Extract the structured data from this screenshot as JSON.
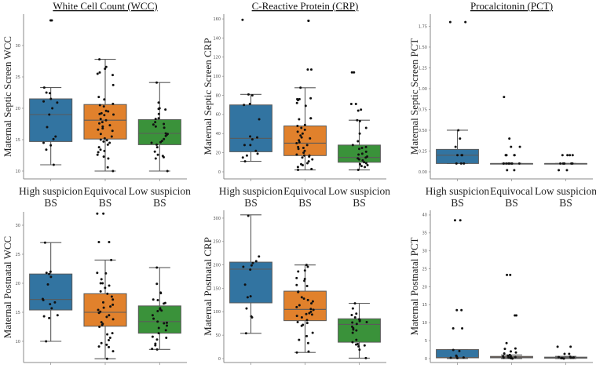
{
  "category_labels": [
    [
      "High suspicion",
      "BS"
    ],
    [
      "Equivocal",
      "BS"
    ],
    [
      "Low suspicion",
      "BS"
    ]
  ],
  "colors": {
    "High suspicion BS": "#3274a1",
    "Equivocal BS": "#e1812c",
    "Low suspicion BS": "#3a923a",
    "points": "#111111",
    "axis": "#888888",
    "whisker": "#5a5a5a"
  },
  "chart_data": [
    {
      "type": "box",
      "title": "White Cell Count (WCC)",
      "ylabel": "Maternal Septic Screen WCC",
      "ylim": [
        8.75,
        35
      ],
      "yticks": [
        10,
        15,
        20,
        25,
        30
      ],
      "show_categories": true,
      "categories": [
        "High suspicion BS",
        "Equivocal BS",
        "Low suspicion BS"
      ],
      "groups": [
        {
          "q1": 14.7,
          "median": 19,
          "q3": 21.5,
          "whisker_low": 11,
          "whisker_high": 23.3,
          "points": [
            34,
            34,
            23.3,
            22.5,
            22.4,
            21.5,
            21.1,
            20.9,
            20,
            19,
            17,
            15.5,
            15.1,
            14.5,
            14.1,
            13.4,
            11
          ]
        },
        {
          "q1": 15.1,
          "median": 18.1,
          "q3": 20.6,
          "whisker_low": 10,
          "whisker_high": 27.8,
          "points": [
            27.8,
            26.6,
            26.3,
            25.7,
            25.5,
            25.3,
            23.7,
            21.8,
            21.4,
            20.7,
            20.5,
            20.3,
            19.6,
            19.5,
            19.2,
            19.1,
            19,
            18.9,
            18.3,
            18.1,
            17.8,
            17.6,
            17.3,
            17.1,
            16.8,
            16.6,
            16.4,
            15.9,
            15.5,
            15.2,
            15,
            14.9,
            14.7,
            14.5,
            14.2,
            13.8,
            13.4,
            13.2,
            13,
            12.6,
            12.3,
            12,
            10.6,
            10
          ]
        },
        {
          "q1": 14.2,
          "median": 16,
          "q3": 18.2,
          "whisker_low": 10,
          "whisker_high": 24.1,
          "points": [
            24.1,
            20.9,
            20,
            19.9,
            19.8,
            19.1,
            18.4,
            18.3,
            17.8,
            17.5,
            17.4,
            17.1,
            16.9,
            16,
            15.9,
            15.8,
            15.6,
            15.1,
            14.8,
            14.6,
            14.5,
            14.2,
            13.8,
            13.1,
            12.6,
            12.4,
            12.2,
            12,
            10
          ]
        }
      ]
    },
    {
      "type": "box",
      "title": "C-Reactive Protein (CRP)",
      "ylabel": "Maternal Septic Screen CRP",
      "ylim": [
        -7.4,
        165
      ],
      "yticks": [
        0,
        20,
        40,
        60,
        80,
        100,
        120,
        140,
        160
      ],
      "show_categories": true,
      "categories": [
        "High suspicion BS",
        "Equivocal BS",
        "Low suspicion BS"
      ],
      "groups": [
        {
          "q1": 21,
          "median": 35,
          "q3": 70,
          "whisker_low": 11,
          "whisker_high": 81,
          "points": [
            159,
            81,
            80,
            71,
            70,
            55,
            37,
            36,
            34,
            28,
            28,
            22,
            19,
            17,
            15,
            11
          ]
        },
        {
          "q1": 17,
          "median": 30,
          "q3": 48,
          "whisker_low": 2,
          "whisker_high": 88,
          "points": [
            158,
            158,
            107,
            107,
            88,
            77,
            76,
            76,
            75,
            72,
            69,
            56,
            56,
            55,
            49,
            48,
            46,
            44,
            42,
            40,
            38,
            36,
            35,
            33,
            31,
            30,
            28,
            26,
            25,
            24,
            22,
            20,
            18,
            17,
            17,
            16,
            15,
            13,
            11,
            9,
            8,
            7,
            5,
            3,
            2
          ]
        },
        {
          "q1": 10,
          "median": 15,
          "q3": 28,
          "whisker_low": 2,
          "whisker_high": 54,
          "points": [
            104,
            104,
            71,
            71,
            65,
            64,
            54,
            53,
            46,
            40,
            32,
            28,
            26,
            25,
            24,
            21,
            19,
            18,
            16,
            15,
            14,
            13,
            12,
            10,
            9,
            8,
            7,
            6,
            5,
            2
          ]
        }
      ]
    },
    {
      "type": "box",
      "title": "Procalcitonin (PCT)",
      "ylabel": "Maternal Septic Screen PCT",
      "ylim": [
        -0.085,
        1.896
      ],
      "yticks": [
        "0.00",
        "0.25",
        "0.50",
        "0.75",
        "1.00",
        "1.25",
        "1.50",
        "1.75"
      ],
      "show_categories": true,
      "categories": [
        "High suspicion BS",
        "Equivocal BS",
        "Low suspicion BS"
      ],
      "groups": [
        {
          "q1": 0.1,
          "median": 0.2,
          "q3": 0.27,
          "whisker_low": 0.1,
          "whisker_high": 0.5,
          "points": [
            1.8,
            1.8,
            0.5,
            0.4,
            0.3,
            0.2,
            0.2,
            0.2,
            0.1,
            0.1,
            0.1
          ]
        },
        {
          "q1": 0.1,
          "median": 0.1,
          "q3": 0.1,
          "whisker_low": 0.1,
          "whisker_high": 0.1,
          "points": [
            0.9,
            0.4,
            0.3,
            0.3,
            0.2,
            0.2,
            0.2,
            0.2,
            0.2,
            0.1,
            0.1,
            0.1,
            0.1,
            0.1,
            0.1,
            0.1,
            0.1,
            0.02,
            0.02
          ]
        },
        {
          "q1": 0.1,
          "median": 0.1,
          "q3": 0.1,
          "whisker_low": 0.1,
          "whisker_high": 0.1,
          "points": [
            0.2,
            0.2,
            0.2,
            0.2,
            0.1,
            0.1,
            0.1,
            0.1,
            0.1,
            0.1,
            0.02,
            0.02
          ]
        }
      ]
    },
    {
      "type": "box",
      "title": "",
      "ylabel": "Maternal Postnatal WCC",
      "ylim": [
        6.35,
        32.3
      ],
      "yticks": [
        10,
        15,
        20,
        25,
        30
      ],
      "show_categories": false,
      "categories": [
        "High suspicion BS",
        "Equivocal BS",
        "Low suspicion BS"
      ],
      "groups": [
        {
          "q1": 15.4,
          "median": 17.2,
          "q3": 21.6,
          "whisker_low": 10,
          "whisker_high": 27,
          "points": [
            27,
            22,
            21.8,
            21.6,
            21.1,
            19.8,
            17.3,
            17.1,
            16.7,
            16.4,
            15.7,
            14.5,
            14.3,
            14,
            10
          ]
        },
        {
          "q1": 12.6,
          "median": 15,
          "q3": 18.2,
          "whisker_low": 7,
          "whisker_high": 24,
          "points": [
            32,
            32,
            27.1,
            27.1,
            24,
            21.8,
            21.7,
            20.7,
            20,
            20,
            19.6,
            19.2,
            18.6,
            18.2,
            17.7,
            17.2,
            16.7,
            16.3,
            16,
            15.8,
            15.4,
            15.1,
            14.9,
            14.5,
            14.2,
            13.8,
            13.3,
            13,
            12.8,
            12.5,
            11.4,
            11.2,
            10.6,
            10.2,
            9.7,
            9.4,
            9.1,
            9,
            8.3,
            7
          ]
        },
        {
          "q1": 11.4,
          "median": 13.4,
          "q3": 16.1,
          "whisker_low": 8.6,
          "whisker_high": 22.7,
          "points": [
            22.7,
            19.9,
            18.4,
            18.3,
            17.2,
            17.1,
            16.6,
            16.5,
            15.7,
            15.5,
            15.3,
            15.2,
            14.5,
            13.9,
            13.4,
            13.2,
            13.1,
            12.7,
            12.3,
            11.9,
            11.4,
            10.8,
            10.6,
            10.3,
            9.6,
            9.3,
            8.7,
            8.6
          ]
        }
      ]
    },
    {
      "type": "box",
      "title": "",
      "ylabel": "Maternal Postnatal CRP",
      "ylim": [
        -8.4,
        316.7
      ],
      "yticks": [
        0,
        50,
        100,
        150,
        200,
        250,
        300
      ],
      "show_categories": false,
      "categories": [
        "High suspicion BS",
        "Equivocal BS",
        "Low suspicion BS"
      ],
      "groups": [
        {
          "q1": 119,
          "median": 191,
          "q3": 206,
          "whisker_low": 54,
          "whisker_high": 307,
          "points": [
            305,
            218,
            208,
            204,
            199,
            196,
            190,
            158,
            133,
            131,
            107,
            90,
            88,
            54
          ]
        },
        {
          "q1": 81,
          "median": 105,
          "q3": 144,
          "whisker_low": 13,
          "whisker_high": 200,
          "points": [
            200,
            196,
            188,
            186,
            172,
            170,
            166,
            157,
            155,
            143,
            142,
            131,
            128,
            125,
            122,
            118,
            114,
            110,
            106,
            104,
            100,
            97,
            95,
            94,
            91,
            88,
            82,
            78,
            76,
            72,
            70,
            55,
            48,
            40,
            33,
            15,
            13
          ]
        },
        {
          "q1": 35,
          "median": 73,
          "q3": 85,
          "whisker_low": 1,
          "whisker_high": 118,
          "points": [
            118,
            107,
            96,
            93,
            88,
            84,
            82,
            80,
            78,
            77,
            74,
            68,
            65,
            62,
            60,
            55,
            40,
            35,
            31,
            30,
            28,
            26,
            19,
            1
          ]
        }
      ]
    },
    {
      "type": "box",
      "title": "",
      "ylabel": "Maternal Postnatal PCT",
      "ylim": [
        -1.1,
        41.3
      ],
      "yticks": [
        0,
        5,
        10,
        15,
        20,
        25,
        30,
        35,
        40
      ],
      "show_categories": false,
      "categories": [
        "High suspicion BS",
        "Equivocal BS",
        "Low suspicion BS"
      ],
      "groups": [
        {
          "q1": 0.2,
          "median": 0.3,
          "q3": 2.5,
          "whisker_low": 0,
          "whisker_high": 2.5,
          "points": [
            38.5,
            38.5,
            13.5,
            13.5,
            8.4,
            8.4,
            2.4,
            2.1,
            0.8,
            0.5,
            0.3,
            0.2,
            0.1
          ]
        },
        {
          "q1": 0.2,
          "median": 0.4,
          "q3": 0.6,
          "whisker_low": 0,
          "whisker_high": 1,
          "points": [
            23.3,
            23.3,
            12,
            12,
            4.3,
            2.8,
            2.7,
            2,
            1.7,
            1.4,
            1,
            0.8,
            0.6,
            0.5,
            0.4,
            0.3,
            0.2,
            0.1,
            0.1,
            0
          ]
        },
        {
          "q1": 0.1,
          "median": 0.2,
          "q3": 0.4,
          "whisker_low": 0,
          "whisker_high": 0.6,
          "points": [
            3.3,
            3.3,
            1.3,
            1.3,
            0.5,
            0.4,
            0.3,
            0.2,
            0.2,
            0.1,
            0.1,
            0
          ]
        }
      ]
    }
  ]
}
